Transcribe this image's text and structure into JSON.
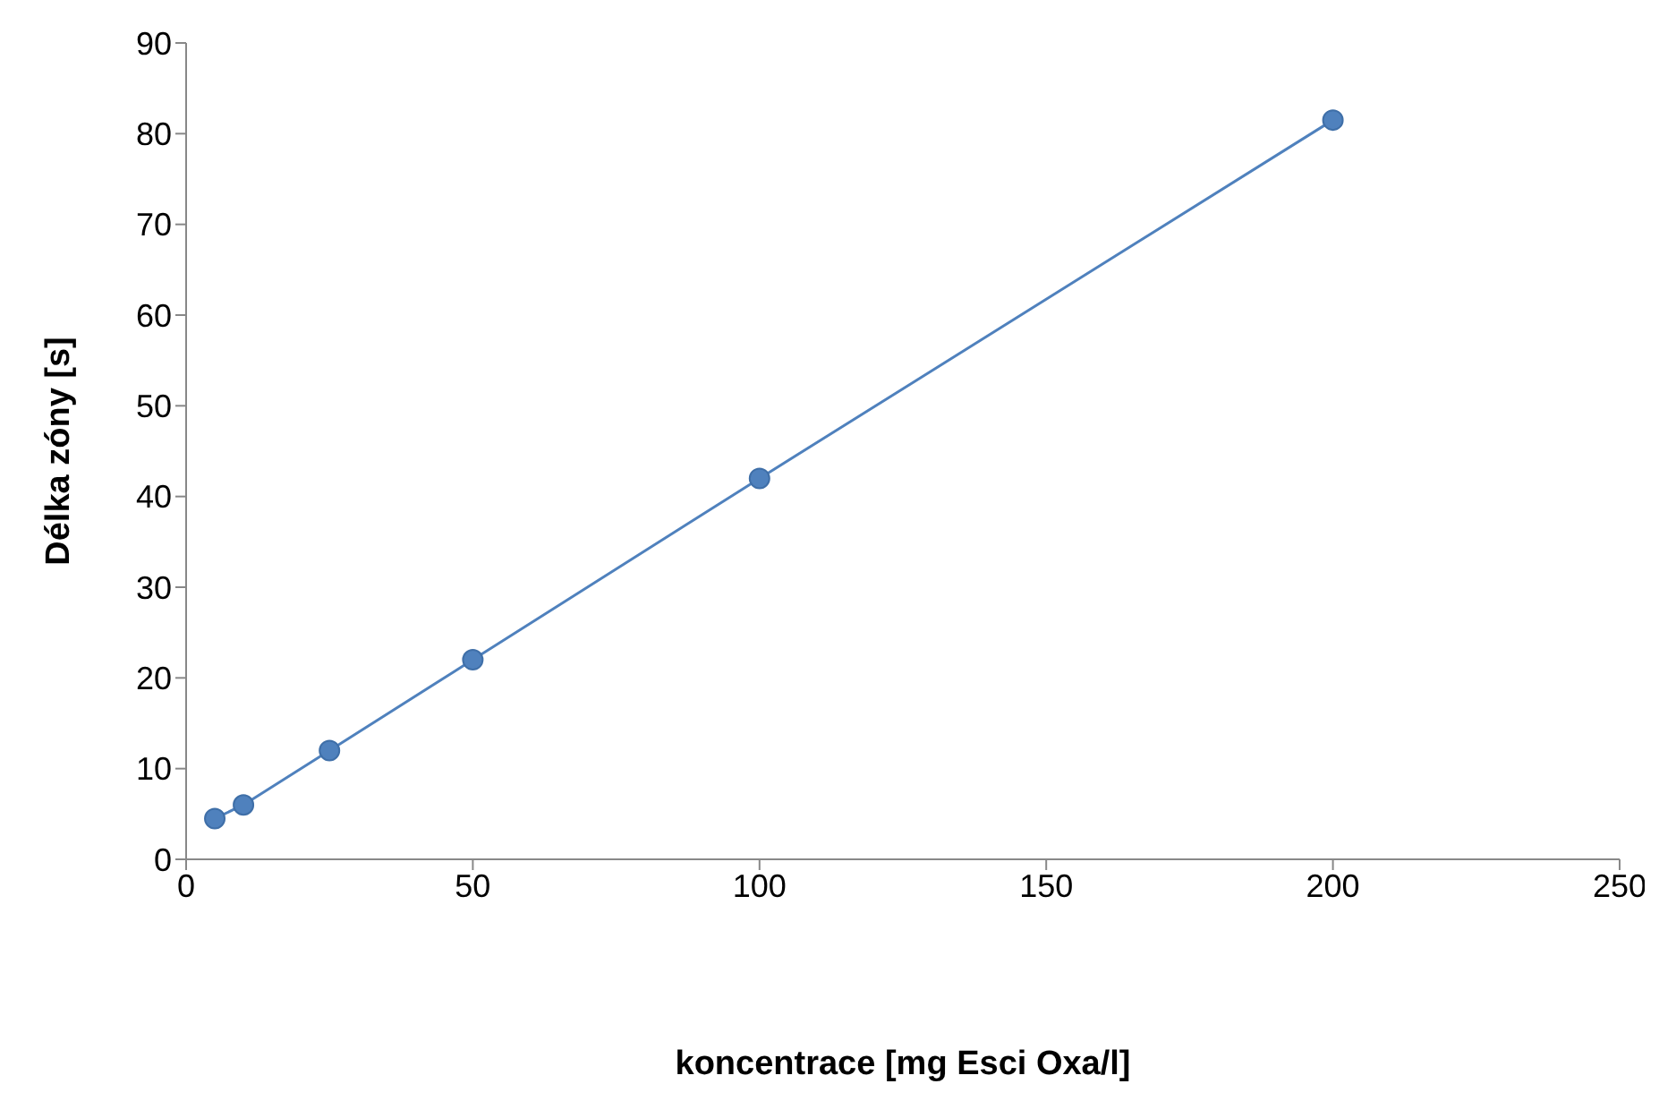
{
  "chart_data": {
    "type": "line",
    "xlabel": "koncentrace [mg Esci Oxa/l]",
    "ylabel": "Délka zóny [s]",
    "x": [
      5,
      10,
      25,
      50,
      100,
      200
    ],
    "series": [
      {
        "color": "#4f81bd",
        "values": [
          4.5,
          6,
          12,
          22,
          42,
          81.5
        ]
      }
    ],
    "xlim": [
      0,
      250
    ],
    "xticks": [
      0,
      50,
      100,
      150,
      200,
      250
    ],
    "ylim": [
      0,
      90
    ],
    "yticks": [
      0,
      10,
      20,
      30,
      40,
      50,
      60,
      70,
      80,
      90
    ],
    "grid": false,
    "marker": "circle",
    "line_style": "solid"
  }
}
